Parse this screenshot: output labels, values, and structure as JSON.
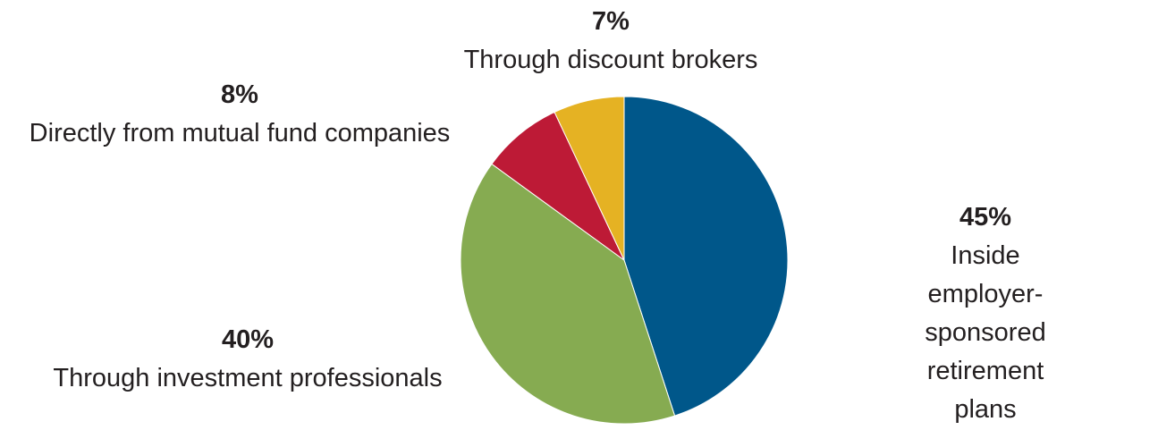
{
  "chart_data": {
    "type": "pie",
    "categories": [
      "Inside employer-sponsored retirement plans",
      "Through investment professionals",
      "Directly from mutual fund companies",
      "Through discount brokers"
    ],
    "values": [
      45,
      40,
      8,
      7
    ],
    "value_labels": [
      "45%",
      "40%",
      "8%",
      "7%"
    ],
    "colors": [
      "#00578a",
      "#86ab51",
      "#bd1a36",
      "#e5b223"
    ]
  }
}
